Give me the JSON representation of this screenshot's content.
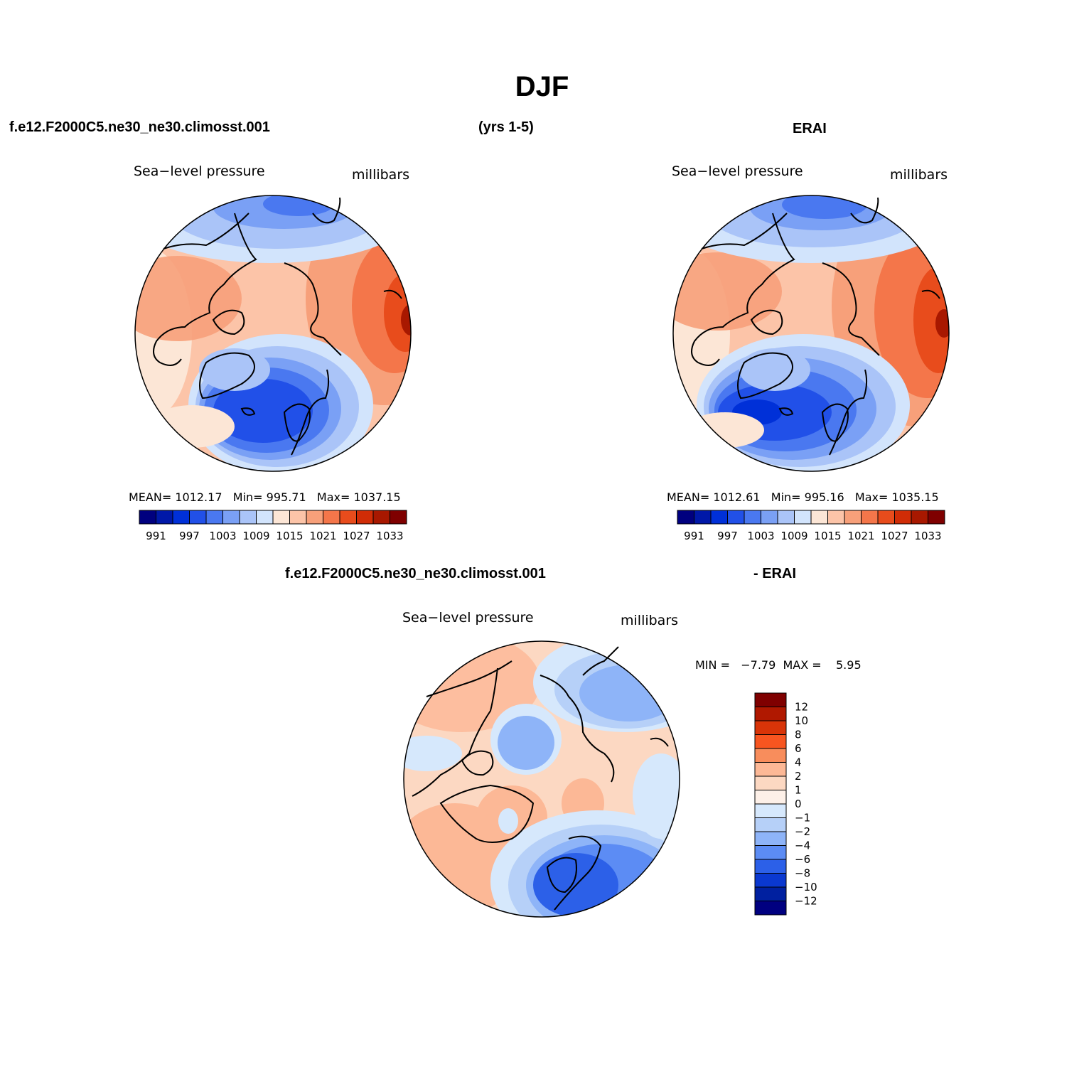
{
  "page": {
    "title": "DJF",
    "case_name": "f.e12.F2000C5.ne30_ne30.climosst.001",
    "years": "(yrs 1-5)",
    "obs_name": "ERAI",
    "diff_case_name": "f.e12.F2000C5.ne30_ne30.climosst.001",
    "diff_obs_name": "- ERAI"
  },
  "panels": [
    {
      "id": "model",
      "variable": "Sea−level pressure",
      "units": "millibars",
      "stats": {
        "mean_label": "MEAN=",
        "mean": "1012.17",
        "min_label": "Min=",
        "min": "995.71",
        "max_label": "Max=",
        "max": "1037.15"
      }
    },
    {
      "id": "obs",
      "variable": "Sea−level pressure",
      "units": "millibars",
      "stats": {
        "mean_label": "MEAN=",
        "mean": "1012.61",
        "min_label": "Min=",
        "min": "995.16",
        "max_label": "Max=",
        "max": "1035.15"
      }
    },
    {
      "id": "diff",
      "variable": "Sea−level pressure",
      "units": "millibars",
      "stats": {
        "min_label": "MIN =",
        "min": "−7.79",
        "max_label": "MAX =",
        "max": "5.95"
      }
    }
  ],
  "colorbar_abs": {
    "colors": [
      "#00007f",
      "#0018a8",
      "#0030d8",
      "#2150e8",
      "#4a78f0",
      "#7aa0f5",
      "#aac4f8",
      "#d2e4fc",
      "#fce6d6",
      "#fcc4a8",
      "#f7a07a",
      "#f4764a",
      "#e84c1c",
      "#d02c06",
      "#a81800",
      "#7f0000"
    ],
    "tick_labels": [
      "991",
      "997",
      "1003",
      "1009",
      "1015",
      "1021",
      "1027",
      "1033"
    ]
  },
  "colorbar_diff": {
    "colors": [
      "#7f0000",
      "#b01800",
      "#d83408",
      "#f75520",
      "#f88d5c",
      "#fcb896",
      "#fcd8c2",
      "#fdf0e8",
      "#d6e8fc",
      "#b6d0f8",
      "#8eb4f8",
      "#5c8cf4",
      "#2c60e8",
      "#0a38d0",
      "#0020a0",
      "#000080"
    ],
    "tick_labels": [
      "12",
      "10",
      "8",
      "6",
      "4",
      "2",
      "1",
      "0",
      "−1",
      "−2",
      "−4",
      "−6",
      "−8",
      "−10",
      "−12"
    ]
  }
}
